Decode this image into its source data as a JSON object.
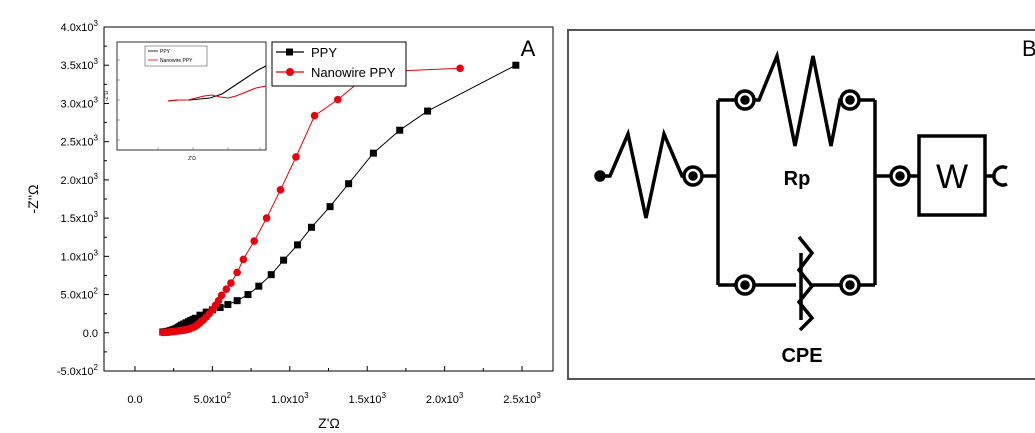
{
  "chart_data": [
    {
      "type": "line",
      "title": "",
      "panel_label": "A",
      "xlabel": "Z'Ω",
      "ylabel": "-Z''Ω",
      "xlim": [
        -200,
        2700
      ],
      "ylim": [
        -500,
        4000
      ],
      "x_ticks": [
        {
          "v": 0,
          "label": "0.0",
          "sup": ""
        },
        {
          "v": 500,
          "label": "5.0x10",
          "sup": "2"
        },
        {
          "v": 1000,
          "label": "1.0x10",
          "sup": "3"
        },
        {
          "v": 1500,
          "label": "1.5x10",
          "sup": "3"
        },
        {
          "v": 2000,
          "label": "2.0x10",
          "sup": "3"
        },
        {
          "v": 2500,
          "label": "2.5x10",
          "sup": "3"
        }
      ],
      "y_ticks": [
        {
          "v": -500,
          "label": "-5.0x10",
          "sup": "2"
        },
        {
          "v": 0,
          "label": "0.0",
          "sup": ""
        },
        {
          "v": 500,
          "label": "5.0x10",
          "sup": "2"
        },
        {
          "v": 1000,
          "label": "1.0x10",
          "sup": "3"
        },
        {
          "v": 1500,
          "label": "1.5x10",
          "sup": "3"
        },
        {
          "v": 2000,
          "label": "2.0x10",
          "sup": "3"
        },
        {
          "v": 2500,
          "label": "2.5x10",
          "sup": "3"
        },
        {
          "v": 3000,
          "label": "3.0x10",
          "sup": "3"
        },
        {
          "v": 3500,
          "label": "3.5x10",
          "sup": "3"
        },
        {
          "v": 4000,
          "label": "4.0x10",
          "sup": "3"
        }
      ],
      "legend": "top-right",
      "grid": false,
      "series": [
        {
          "name": "PPY",
          "color": "#000000",
          "marker": "square",
          "x": [
            180,
            190,
            200,
            210,
            220,
            230,
            240,
            250,
            260,
            270,
            280,
            290,
            300,
            315,
            330,
            345,
            360,
            375,
            390,
            420,
            460,
            500,
            550,
            600,
            660,
            730,
            800,
            880,
            960,
            1050,
            1140,
            1260,
            1380,
            1540,
            1710,
            1890,
            2460
          ],
          "y": [
            10,
            12,
            15,
            18,
            22,
            28,
            35,
            42,
            50,
            60,
            72,
            85,
            100,
            115,
            130,
            145,
            160,
            175,
            190,
            230,
            270,
            300,
            330,
            370,
            420,
            500,
            610,
            760,
            950,
            1150,
            1380,
            1650,
            1950,
            2350,
            2650,
            2900,
            3500
          ]
        },
        {
          "name": "Nanowire PPY",
          "color": "#e8000b",
          "marker": "circle",
          "x": [
            180,
            190,
            200,
            210,
            220,
            230,
            240,
            250,
            260,
            270,
            280,
            290,
            300,
            310,
            320,
            330,
            340,
            350,
            360,
            370,
            380,
            390,
            400,
            410,
            420,
            440,
            460,
            480,
            500,
            520,
            540,
            560,
            590,
            620,
            660,
            700,
            770,
            850,
            940,
            1040,
            1160,
            1310,
            1460,
            1660,
            2100
          ],
          "y": [
            5,
            6,
            7,
            8,
            10,
            12,
            15,
            18,
            20,
            22,
            25,
            28,
            30,
            33,
            36,
            40,
            45,
            50,
            58,
            66,
            75,
            85,
            100,
            115,
            130,
            165,
            205,
            250,
            300,
            360,
            420,
            490,
            570,
            650,
            790,
            960,
            1200,
            1500,
            1870,
            2300,
            2840,
            3050,
            3300,
            3420,
            3460
          ]
        }
      ],
      "inset": {
        "legend": [
          {
            "name": "PPY",
            "color": "#000000"
          },
          {
            "name": "Nanowire PPY",
            "color": "#e8000b"
          }
        ],
        "xlabel": "Z'Ω",
        "ylabel": "-Z''Ω"
      }
    }
  ],
  "circuit": {
    "panel_label": "B",
    "labels": {
      "rp": "Rp",
      "cpe": "CPE",
      "w": "W"
    },
    "components": [
      "resistor",
      "parallel-resistor-rp",
      "constant-phase-element",
      "warburg-element"
    ]
  }
}
